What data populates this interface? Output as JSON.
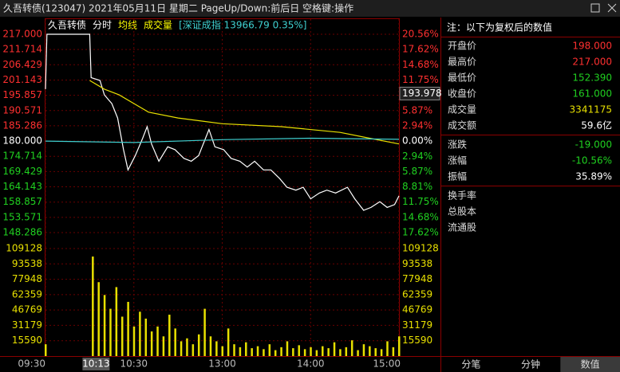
{
  "header": {
    "title": "久吾转债(123047)  2021年05月11日  星期二  PageUp/Down:前后日  空格键:操作"
  },
  "chart_data": {
    "type": "line",
    "legend": [
      {
        "text": "久吾转债",
        "color": "#ffffff"
      },
      {
        "text": "分时",
        "color": "#ffffff"
      },
      {
        "text": "均线",
        "color": "#ffff00"
      },
      {
        "text": "成交量",
        "color": "#ffff00"
      },
      {
        "text": "[深证成指 13966.79 0.35%]",
        "color": "#3fd0d0"
      }
    ],
    "xlim": [
      0,
      240
    ],
    "xticks": [
      {
        "value": 0,
        "label": "09:30"
      },
      {
        "value": 60,
        "label": "10:30"
      },
      {
        "value": 120,
        "label": "13:00"
      },
      {
        "value": 180,
        "label": "14:00"
      },
      {
        "value": 240,
        "label": "15:00"
      }
    ],
    "ylim": [
      148.286,
      217
    ],
    "yticks": [
      {
        "value": 217,
        "label": "217.000"
      },
      {
        "value": 211.714,
        "label": "211.714"
      },
      {
        "value": 206.429,
        "label": "206.429"
      },
      {
        "value": 201.143,
        "label": "201.143"
      },
      {
        "value": 195.857,
        "label": "195.857"
      },
      {
        "value": 190.571,
        "label": "190.571"
      },
      {
        "value": 185.286,
        "label": "185.286"
      },
      {
        "value": 180,
        "label": "180.000"
      },
      {
        "value": 174.714,
        "label": "174.714"
      },
      {
        "value": 169.429,
        "label": "169.429"
      },
      {
        "value": 164.143,
        "label": "164.143"
      },
      {
        "value": 158.857,
        "label": "158.857"
      },
      {
        "value": 153.571,
        "label": "153.571"
      },
      {
        "value": 148.286,
        "label": "148.286"
      }
    ],
    "y2lim": [
      -17.62,
      20.56
    ],
    "y2ticks": [
      {
        "value": 20.56,
        "label": "20.56%"
      },
      {
        "value": 17.62,
        "label": "17.62%"
      },
      {
        "value": 14.68,
        "label": "14.68%"
      },
      {
        "value": 11.75,
        "label": "11.75%"
      },
      {
        "value": 8.81,
        "label": "8.81%"
      },
      {
        "value": 5.87,
        "label": "5.87%"
      },
      {
        "value": 2.94,
        "label": "2.94%"
      },
      {
        "value": 0,
        "label": "0.00%"
      },
      {
        "value": -2.94,
        "label": "2.94%"
      },
      {
        "value": -5.87,
        "label": "5.87%"
      },
      {
        "value": -8.81,
        "label": "8.81%"
      },
      {
        "value": -11.75,
        "label": "11.75%"
      },
      {
        "value": -14.68,
        "label": "14.68%"
      },
      {
        "value": -17.62,
        "label": "17.62%"
      }
    ],
    "series": [
      {
        "name": "分时",
        "color": "#ffffff",
        "x": [
          0,
          1,
          30,
          31,
          37,
          40,
          45,
          49,
          53,
          56,
          61,
          66,
          69,
          72,
          77,
          83,
          88,
          94,
          99,
          104,
          111,
          115,
          121,
          126,
          132,
          137,
          142,
          148,
          153,
          159,
          164,
          170,
          175,
          180,
          186,
          191,
          197,
          205,
          210,
          216,
          221,
          227,
          232,
          237,
          240
        ],
        "values": [
          198,
          217,
          217,
          202,
          201,
          196,
          193,
          188,
          177,
          170,
          175,
          181,
          185,
          179,
          173,
          178,
          177,
          174,
          173,
          175,
          184,
          178,
          177,
          174,
          173,
          171,
          173,
          170,
          170,
          167,
          164,
          163,
          164,
          160,
          162,
          163,
          162,
          164,
          160,
          156,
          157,
          159,
          157,
          158,
          161
        ]
      },
      {
        "name": "均线",
        "color": "#e8e000",
        "x": [
          30,
          40,
          50,
          60,
          70,
          90,
          120,
          160,
          200,
          220,
          240
        ],
        "values": [
          201,
          198,
          196,
          193,
          190,
          188,
          186,
          185,
          183,
          181,
          179
        ]
      },
      {
        "name": "深证成指",
        "color": "#3fd0d0",
        "x": [
          0,
          60,
          120,
          180,
          240
        ],
        "values": [
          180,
          179.5,
          180.5,
          181,
          180.6
        ]
      }
    ],
    "volume": {
      "color": "#e8e000",
      "ylim": [
        0,
        109128
      ],
      "yticks": [
        109128,
        93538,
        77948,
        62359,
        46769,
        31179,
        15590
      ],
      "x": [
        0,
        4,
        8,
        12,
        16,
        20,
        24,
        28,
        32,
        36,
        40,
        44,
        48,
        52,
        56,
        60,
        64,
        68,
        72,
        76,
        80,
        84,
        88,
        92,
        96,
        100,
        104,
        108,
        112,
        116,
        120,
        124,
        128,
        132,
        136,
        140,
        144,
        148,
        152,
        156,
        160,
        164,
        168,
        172,
        176,
        180,
        184,
        188,
        192,
        196,
        200,
        204,
        208,
        212,
        216,
        220,
        224,
        228,
        232,
        236,
        240
      ],
      "values": [
        12000,
        0,
        0,
        0,
        0,
        0,
        0,
        0,
        101000,
        75000,
        62000,
        48000,
        70000,
        40000,
        55000,
        30000,
        45000,
        38000,
        25000,
        30000,
        20000,
        42000,
        28000,
        15000,
        18000,
        12000,
        22000,
        48000,
        20000,
        15000,
        10000,
        28000,
        12000,
        9000,
        14000,
        8000,
        10000,
        7000,
        12000,
        6000,
        9000,
        15000,
        8000,
        11000,
        7000,
        9000,
        6000,
        10000,
        8000,
        14000,
        7000,
        9000,
        16000,
        6000,
        12000,
        10000,
        8000,
        7000,
        15000,
        9000,
        20000
      ]
    },
    "cursor": {
      "x": 43,
      "label": "10:13",
      "value": 193.978
    }
  },
  "panel": {
    "note": "注：以下为复权后的数值",
    "groups": [
      [
        {
          "label": "开盘价",
          "value": "198.000",
          "color": "#ff3030"
        },
        {
          "label": "最高价",
          "value": "217.000",
          "color": "#ff3030"
        },
        {
          "label": "最低价",
          "value": "152.390",
          "color": "#20d020"
        },
        {
          "label": "收盘价",
          "value": "161.000",
          "color": "#20d020"
        },
        {
          "label": "成交量",
          "value": "3341175",
          "color": "#e8e000"
        },
        {
          "label": "成交额",
          "value": "59.6亿",
          "color": "#ffffff"
        }
      ],
      [
        {
          "label": "涨跌",
          "value": "-19.000",
          "color": "#20d020"
        },
        {
          "label": "涨幅",
          "value": "-10.56%",
          "color": "#20d020"
        },
        {
          "label": "振幅",
          "value": "35.89%",
          "color": "#ffffff"
        }
      ],
      [
        {
          "label": "换手率"
        },
        {
          "label": "总股本"
        },
        {
          "label": "流通股"
        }
      ]
    ],
    "tabs": [
      "分笔",
      "分钟",
      "数值"
    ],
    "active_tab": 2
  }
}
